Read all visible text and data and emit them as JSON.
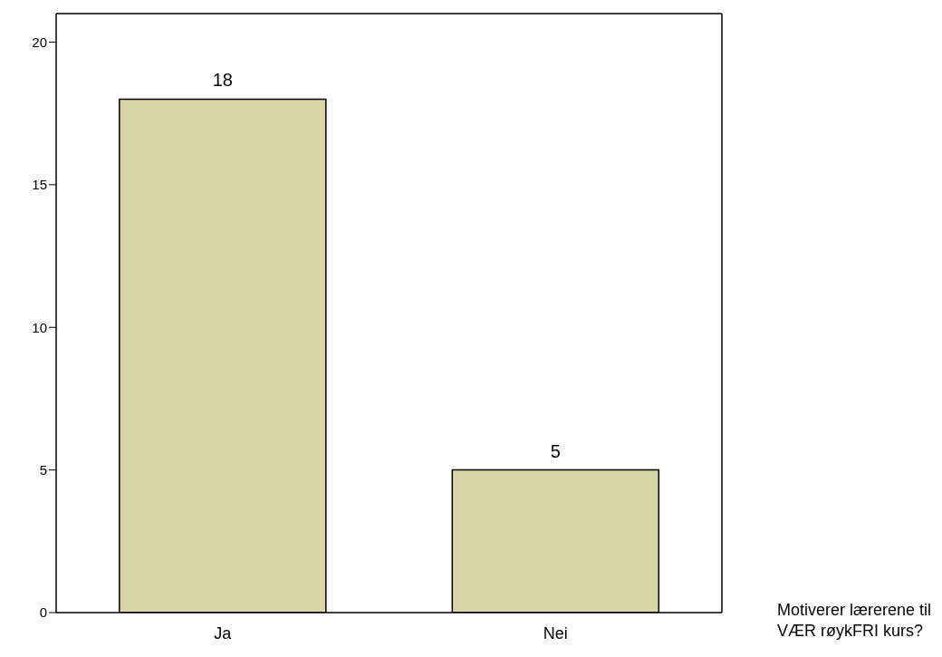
{
  "chart_data": {
    "type": "bar",
    "xlabel": "Motiverer lærerene til VÆR røykFRI kurs?",
    "categories": [
      "Ja",
      "Nei"
    ],
    "values": [
      18,
      5
    ],
    "color": "#d9d5a7",
    "ylim": [
      0,
      21
    ],
    "yticks": [
      0,
      5,
      10,
      15,
      20
    ],
    "data_labels": true
  }
}
